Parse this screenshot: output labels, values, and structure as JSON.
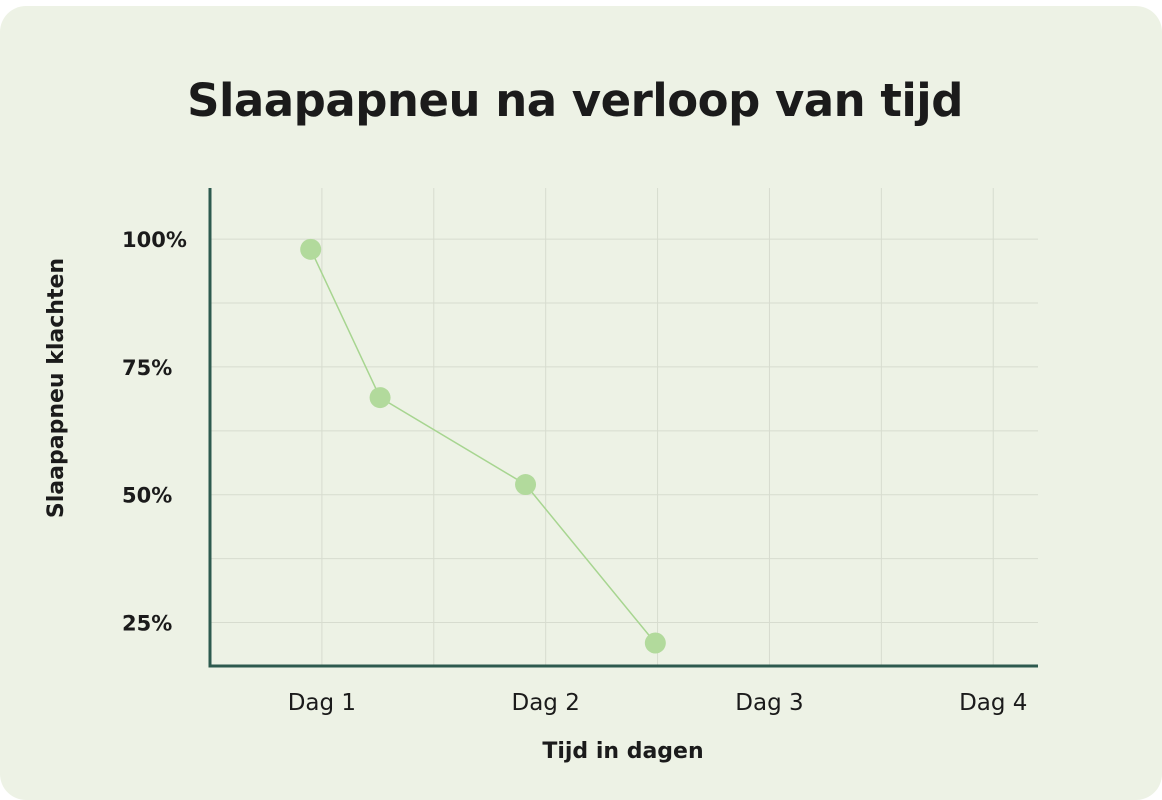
{
  "chart_data": {
    "type": "line",
    "title": "Slaapapneu na verloop van tijd",
    "xlabel": "Tijd in dagen",
    "ylabel": "Slaapapneu klachten",
    "x_tick_labels": [
      "Dag 1",
      "Dag 2",
      "Dag 3",
      "Dag 4"
    ],
    "x_tick_values": [
      1,
      2,
      3,
      4
    ],
    "y_tick_labels": [
      "100%",
      "75%",
      "50%",
      "25%"
    ],
    "y_tick_values": [
      100,
      75,
      50,
      25
    ],
    "xlim": [
      0.5,
      4.2
    ],
    "ylim": [
      16.5,
      110
    ],
    "grid": true,
    "series": [
      {
        "points": [
          {
            "x": 0.95,
            "y": 98
          },
          {
            "x": 1.26,
            "y": 69
          },
          {
            "x": 1.91,
            "y": 52
          },
          {
            "x": 2.49,
            "y": 21
          }
        ]
      }
    ],
    "colors": {
      "background": "#edf2e5",
      "axis": "#2d5a4e",
      "grid": "#d7dccf",
      "line": "#a7d590",
      "marker": "#b2da9c",
      "text": "#1b1b1b"
    }
  }
}
